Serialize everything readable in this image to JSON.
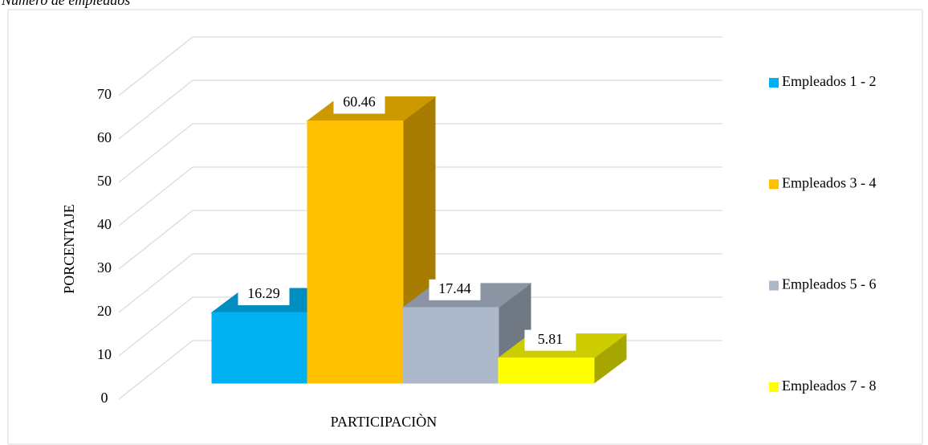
{
  "chart_data": {
    "type": "bar3d",
    "title": "Número de empleados",
    "y_label": "PORCENTAJE",
    "categories": [
      "PARTICIPACIÒN"
    ],
    "series": [
      {
        "name": "Empleados 1 - 2",
        "color": "#00B0F0",
        "values": [
          16.29
        ]
      },
      {
        "name": "Empleados 3 - 4",
        "color": "#FFC000",
        "values": [
          60.46
        ]
      },
      {
        "name": "Empleados 5 - 6",
        "color": "#ADB9CA",
        "values": [
          17.44
        ]
      },
      {
        "name": "Empleados 7 - 8",
        "color": "#FFFF00",
        "values": [
          5.81
        ]
      }
    ],
    "ylim": [
      0,
      70
    ],
    "yticks": [
      0,
      10,
      20,
      30,
      40,
      50,
      60,
      70
    ],
    "grid": true,
    "legend": "right"
  }
}
